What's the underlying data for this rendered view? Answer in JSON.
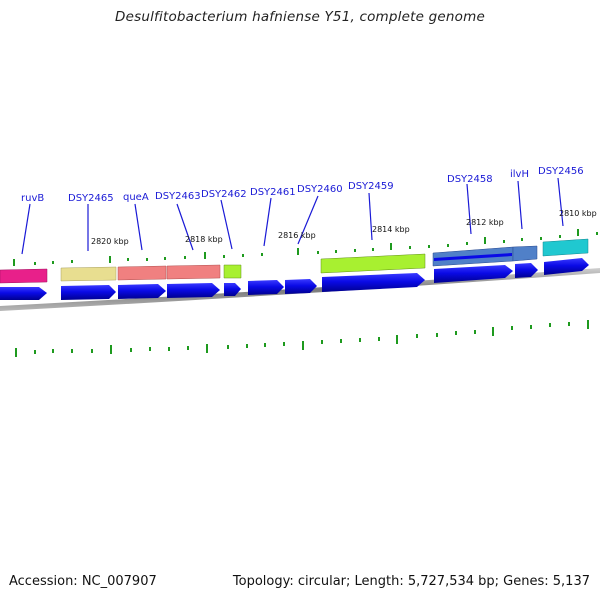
{
  "title": "Desulfitobacterium hafniense Y51, complete genome",
  "footer": {
    "accession": "Accession: NC_007907",
    "summary": "Topology: circular; Length: 5,727,534 bp; Genes: 5,137"
  },
  "gene_labels": [
    "ruvB",
    "DSY2465",
    "queA",
    "DSY2463",
    "DSY2462",
    "DSY2461",
    "DSY2460",
    "DSY2459",
    "DSY2458",
    "ilvH",
    "DSY2456"
  ],
  "kbp_labels": [
    "2820 kbp",
    "2818 kbp",
    "2816 kbp",
    "2814 kbp",
    "2812 kbp",
    "2810 kbp"
  ],
  "colors": {
    "gene_arrow": "#0a0ae6",
    "backbone": "#8a8a8a",
    "tick": "#1e9a1e",
    "label": "#1a1ad6"
  },
  "cog_colors": [
    "#e8208a",
    "#e8de90",
    "#f08080",
    "#f08080",
    "#a8f030",
    "#a8f030",
    "#5080c8",
    "#5080c8",
    "#20c8d0"
  ]
}
